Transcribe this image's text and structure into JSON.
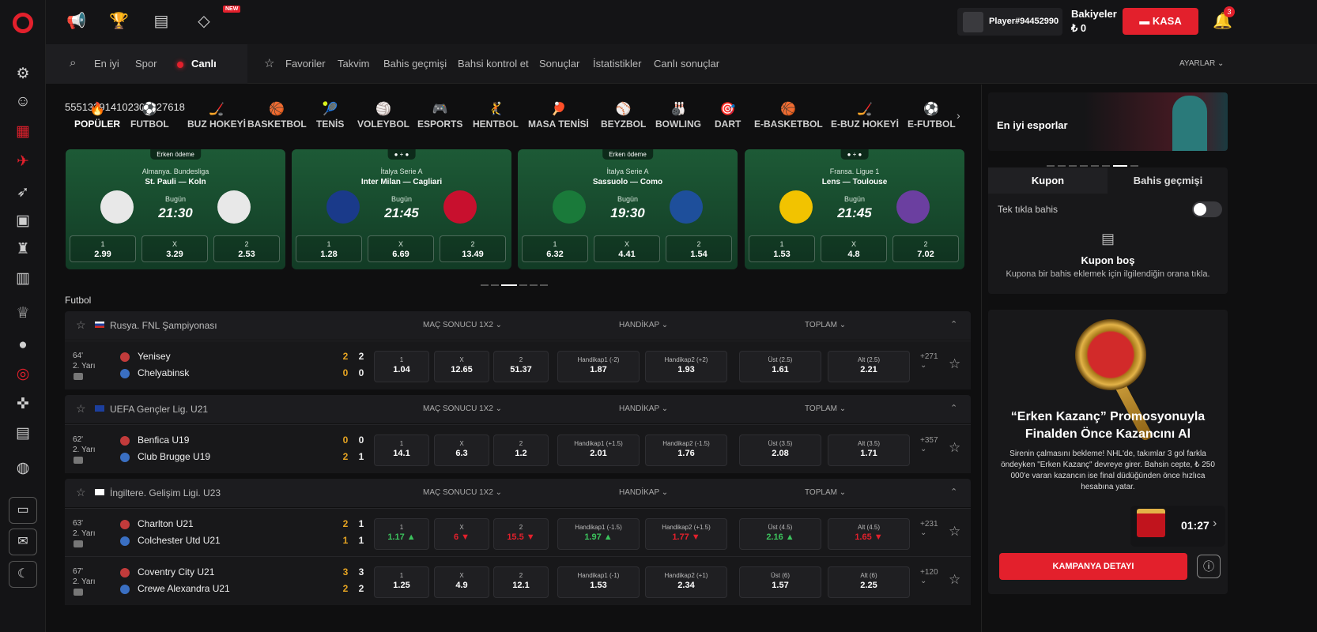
{
  "top": {
    "new_badge": "NEW",
    "player": "Player#94452990",
    "balance_label": "Bakiyeler",
    "balance_value": "₺ 0",
    "kasa": "KASA",
    "notif_count": "3"
  },
  "subnav": {
    "search": "En iyi",
    "spor": "Spor",
    "canli": "Canlı",
    "links": [
      "Favoriler",
      "Takvim",
      "Bahis geçmişi",
      "Bahsi kontrol et",
      "Sonuçlar",
      "İstatistikler",
      "Canlı sonuçlar"
    ],
    "settings": "AYARLAR"
  },
  "sports": [
    {
      "label": "POPÜLER",
      "count": "",
      "icon": "🔥"
    },
    {
      "label": "FUTBOL",
      "count": "55",
      "icon": "⚽"
    },
    {
      "label": "BUZ HOKEYİ",
      "count": "5",
      "icon": "🏒"
    },
    {
      "label": "BASKETBOL",
      "count": "13",
      "icon": "🏀"
    },
    {
      "label": "TENİS",
      "count": "29",
      "icon": "🎾"
    },
    {
      "label": "VOLEYBOL",
      "count": "14",
      "icon": "🏐"
    },
    {
      "label": "ESPORTS",
      "count": "10",
      "icon": "🎮"
    },
    {
      "label": "HENTBOL",
      "count": "2",
      "icon": "🤾"
    },
    {
      "label": "MASA TENİSİ",
      "count": "30",
      "icon": "🏓"
    },
    {
      "label": "BEYZBOL",
      "count": "3",
      "icon": "⚾"
    },
    {
      "label": "BOWLING",
      "count": "2",
      "icon": "🎳"
    },
    {
      "label": "DART",
      "count": "2",
      "icon": "🎯"
    },
    {
      "label": "E-BASKETBOL",
      "count": "7",
      "icon": "🏀"
    },
    {
      "label": "E-BUZ HOKEYİ",
      "count": "6",
      "icon": "🏒"
    },
    {
      "label": "E-FUTBOL",
      "count": "18",
      "icon": "⚽"
    }
  ],
  "featured": [
    {
      "badge": "Erken ödeme",
      "league": "Almanya. Bundesliga",
      "teams": "St. Pauli — Koln",
      "day": "Bugün",
      "time": "21:30",
      "odds": [
        {
          "l": "1",
          "v": "2.99"
        },
        {
          "l": "X",
          "v": "3.29"
        },
        {
          "l": "2",
          "v": "2.53"
        }
      ]
    },
    {
      "badge": "● + ●",
      "league": "İtalya Serie A",
      "teams": "Inter Milan — Cagliari",
      "day": "Bugün",
      "time": "21:45",
      "odds": [
        {
          "l": "1",
          "v": "1.28"
        },
        {
          "l": "X",
          "v": "6.69"
        },
        {
          "l": "2",
          "v": "13.49"
        }
      ]
    },
    {
      "badge": "Erken ödeme",
      "league": "İtalya Serie A",
      "teams": "Sassuolo — Como",
      "day": "Bugün",
      "time": "19:30",
      "odds": [
        {
          "l": "1",
          "v": "6.32"
        },
        {
          "l": "X",
          "v": "4.41"
        },
        {
          "l": "2",
          "v": "1.54"
        }
      ]
    },
    {
      "badge": "● + ●",
      "league": "Fransa. Ligue 1",
      "teams": "Lens — Toulouse",
      "day": "Bugün",
      "time": "21:45",
      "odds": [
        {
          "l": "1",
          "v": "1.53"
        },
        {
          "l": "X",
          "v": "4.8"
        },
        {
          "l": "2",
          "v": "7.02"
        }
      ]
    }
  ],
  "section": "Futbol",
  "markets": [
    "MAÇ SONUCU 1X2",
    "HANDİKAP",
    "TOPLAM"
  ],
  "leagues": [
    {
      "name": "Rusya. FNL Şampiyonası",
      "matches": [
        {
          "min": "64'",
          "half": "2. Yarı",
          "t1": "Yenisey",
          "t2": "Chelyabinsk",
          "s1a": "2",
          "s1b": "2",
          "s2a": "0",
          "s2b": "0",
          "o": [
            [
              "1",
              "1.04",
              ""
            ],
            [
              "X",
              "12.65",
              ""
            ],
            [
              "2",
              "51.37",
              ""
            ],
            [
              "Handikap1 (-2)",
              "1.87",
              ""
            ],
            [
              "Handikap2 (+2)",
              "1.93",
              ""
            ],
            [
              "Üst (2.5)",
              "1.61",
              ""
            ],
            [
              "Alt (2.5)",
              "2.21",
              ""
            ]
          ],
          "more": "+271"
        }
      ]
    },
    {
      "name": "UEFA Gençler Lig. U21",
      "matches": [
        {
          "min": "62'",
          "half": "2. Yarı",
          "t1": "Benfica U19",
          "t2": "Club Brugge U19",
          "s1a": "0",
          "s1b": "0",
          "s2a": "2",
          "s2b": "1",
          "o": [
            [
              "1",
              "14.1",
              ""
            ],
            [
              "X",
              "6.3",
              ""
            ],
            [
              "2",
              "1.2",
              ""
            ],
            [
              "Handikap1 (+1.5)",
              "2.01",
              ""
            ],
            [
              "Handikap2 (-1.5)",
              "1.76",
              ""
            ],
            [
              "Üst (3.5)",
              "2.08",
              ""
            ],
            [
              "Alt (3.5)",
              "1.71",
              ""
            ]
          ],
          "more": "+357"
        }
      ]
    },
    {
      "name": "İngiltere. Gelişim Ligi. U23",
      "matches": [
        {
          "min": "63'",
          "half": "2. Yarı",
          "t1": "Charlton U21",
          "t2": "Colchester Utd U21",
          "s1a": "2",
          "s1b": "1",
          "s2a": "1",
          "s2b": "1",
          "o": [
            [
              "1",
              "1.17 ▲",
              "up"
            ],
            [
              "X",
              "6 ▼",
              "dn"
            ],
            [
              "2",
              "15.5 ▼",
              "dn"
            ],
            [
              "Handikap1 (-1.5)",
              "1.97 ▲",
              "up"
            ],
            [
              "Handikap2 (+1.5)",
              "1.77 ▼",
              "dn"
            ],
            [
              "Üst (4.5)",
              "2.16 ▲",
              "up"
            ],
            [
              "Alt (4.5)",
              "1.65 ▼",
              "dn"
            ]
          ],
          "more": "+231"
        },
        {
          "min": "67'",
          "half": "2. Yarı",
          "t1": "Coventry City U21",
          "t2": "Crewe Alexandra U21",
          "s1a": "3",
          "s1b": "3",
          "s2a": "2",
          "s2b": "2",
          "o": [
            [
              "1",
              "1.25",
              ""
            ],
            [
              "X",
              "4.9",
              ""
            ],
            [
              "2",
              "12.1",
              ""
            ],
            [
              "Handikap1 (-1)",
              "1.53",
              ""
            ],
            [
              "Handikap2 (+1)",
              "2.34",
              ""
            ],
            [
              "Üst (6)",
              "1.57",
              ""
            ],
            [
              "Alt (6)",
              "2.25",
              ""
            ]
          ],
          "more": "+120"
        }
      ]
    }
  ],
  "right": {
    "promo_title": "En iyi esporlar",
    "tab_kupon": "Kupon",
    "tab_history": "Bahis geçmişi",
    "one_click": "Tek tıkla bahis",
    "empty_title": "Kupon boş",
    "empty_info": "Kupona bir bahis eklemek için ilgilendiğin orana tıkla.",
    "promo_heading": "“Erken Kazanç” Promosyonuyla Finalden Önce Kazancını Al",
    "promo_text": "Sirenin çalmasını bekleme! NHL'de, takımlar 3 gol farkla öndeyken \"Erken Kazanç\" devreye girer. Bahsin cepte, ₺ 250 000'e varan kazancın ise final düdüğünden önce hızlıca hesabına yatar.",
    "timer": "01:27",
    "cta": "KAMPANYA DETAYI"
  }
}
